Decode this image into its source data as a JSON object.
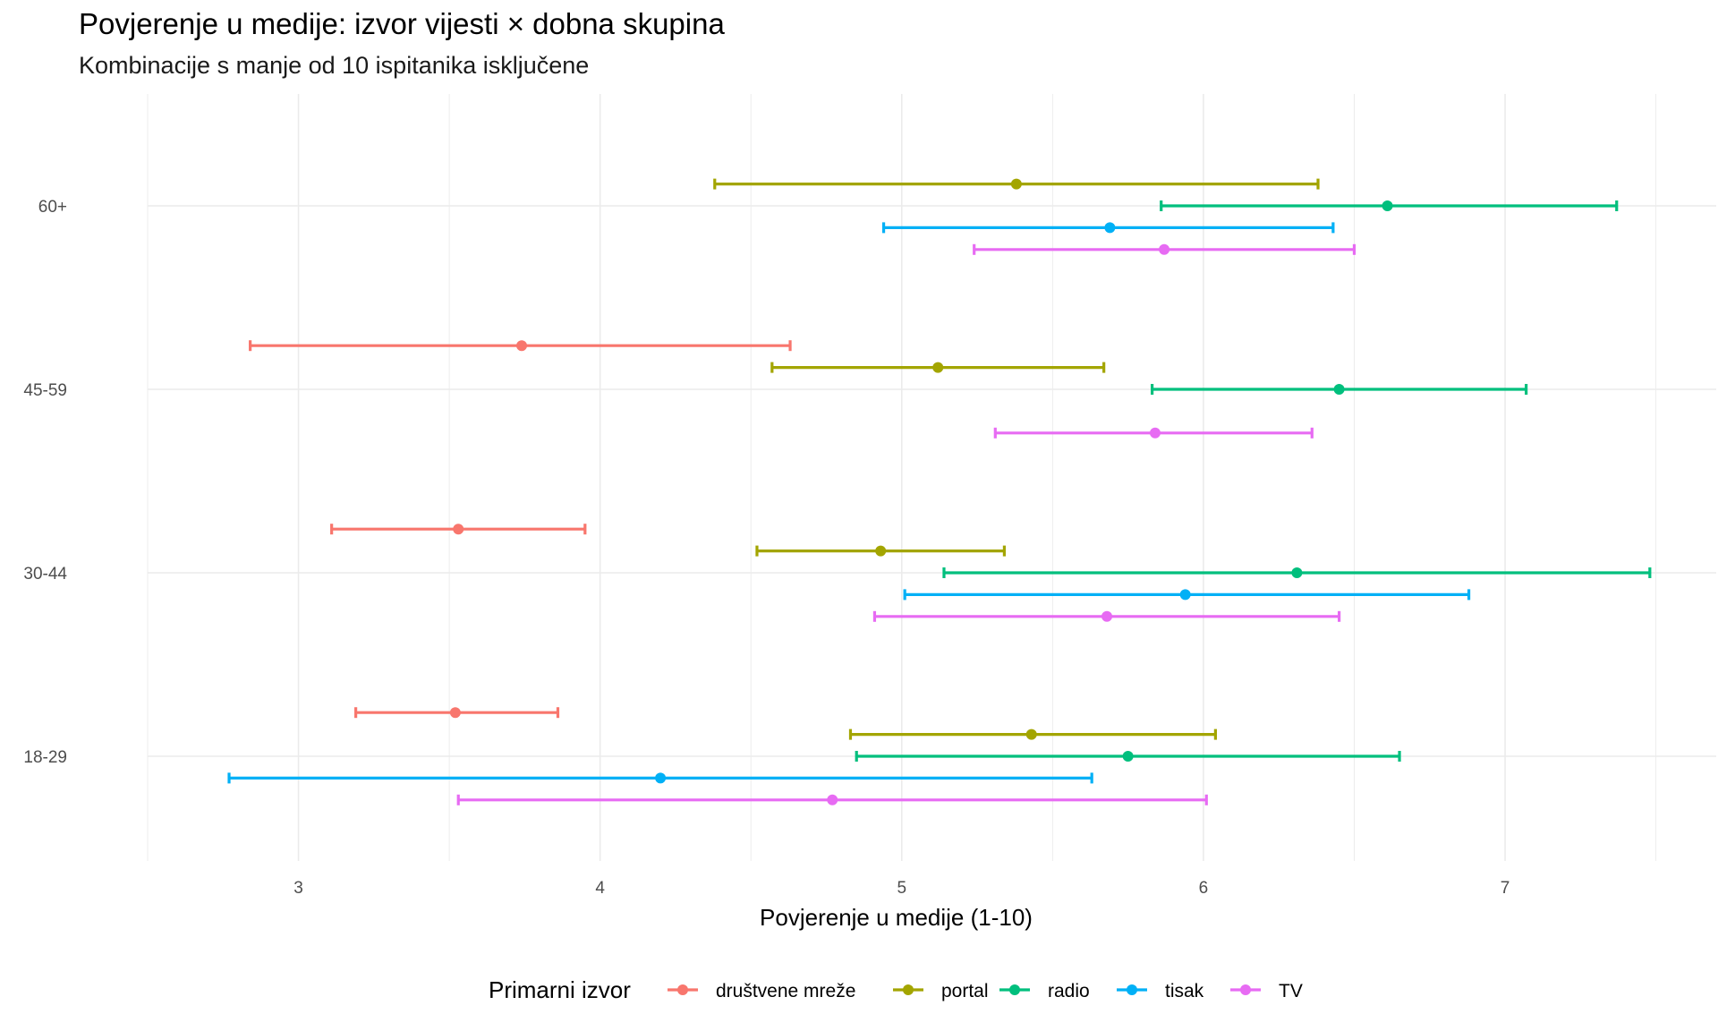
{
  "chart_data": {
    "type": "errorbar-dot",
    "title": "Povjerenje u medije: izvor vijesti × dobna skupina",
    "subtitle": "Kombinacije s manje od 10 ispitanika isključene",
    "xlabel": "Povjerenje u medije (1-10)",
    "ylabel": "",
    "xlim": [
      2.5,
      7.7
    ],
    "xticks": [
      "3",
      "4",
      "5",
      "6",
      "7"
    ],
    "categories": [
      "18-29",
      "30-44",
      "45-59",
      "60+"
    ],
    "legend": {
      "title": "Primarni izvor",
      "position": "bottom"
    },
    "series": [
      {
        "name": "društvene mreže",
        "color": "#F8766D",
        "points": [
          {
            "group": "18-29",
            "mean": 3.52,
            "low": 3.19,
            "high": 3.86
          },
          {
            "group": "30-44",
            "mean": 3.53,
            "low": 3.11,
            "high": 3.95
          },
          {
            "group": "45-59",
            "mean": 3.74,
            "low": 2.84,
            "high": 4.63
          }
        ]
      },
      {
        "name": "portal",
        "color": "#A3A500",
        "points": [
          {
            "group": "18-29",
            "mean": 5.43,
            "low": 4.83,
            "high": 6.04
          },
          {
            "group": "30-44",
            "mean": 4.93,
            "low": 4.52,
            "high": 5.34
          },
          {
            "group": "45-59",
            "mean": 5.12,
            "low": 4.57,
            "high": 5.67
          },
          {
            "group": "60+",
            "mean": 5.38,
            "low": 4.38,
            "high": 6.38
          }
        ]
      },
      {
        "name": "radio",
        "color": "#00BF7D",
        "points": [
          {
            "group": "18-29",
            "mean": 5.75,
            "low": 4.85,
            "high": 6.65
          },
          {
            "group": "30-44",
            "mean": 6.31,
            "low": 5.14,
            "high": 7.48
          },
          {
            "group": "45-59",
            "mean": 6.45,
            "low": 5.83,
            "high": 7.07
          },
          {
            "group": "60+",
            "mean": 6.61,
            "low": 5.86,
            "high": 7.37
          }
        ]
      },
      {
        "name": "tisak",
        "color": "#00B0F6",
        "points": [
          {
            "group": "18-29",
            "mean": 4.2,
            "low": 2.77,
            "high": 5.63
          },
          {
            "group": "30-44",
            "mean": 5.94,
            "low": 5.01,
            "high": 6.88
          },
          {
            "group": "60+",
            "mean": 5.69,
            "low": 4.94,
            "high": 6.43
          }
        ]
      },
      {
        "name": "TV",
        "color": "#E76BF3",
        "points": [
          {
            "group": "18-29",
            "mean": 4.77,
            "low": 3.53,
            "high": 6.01
          },
          {
            "group": "30-44",
            "mean": 5.68,
            "low": 4.91,
            "high": 6.45
          },
          {
            "group": "45-59",
            "mean": 5.84,
            "low": 5.31,
            "high": 6.36
          },
          {
            "group": "60+",
            "mean": 5.87,
            "low": 5.24,
            "high": 6.5
          }
        ]
      }
    ]
  }
}
